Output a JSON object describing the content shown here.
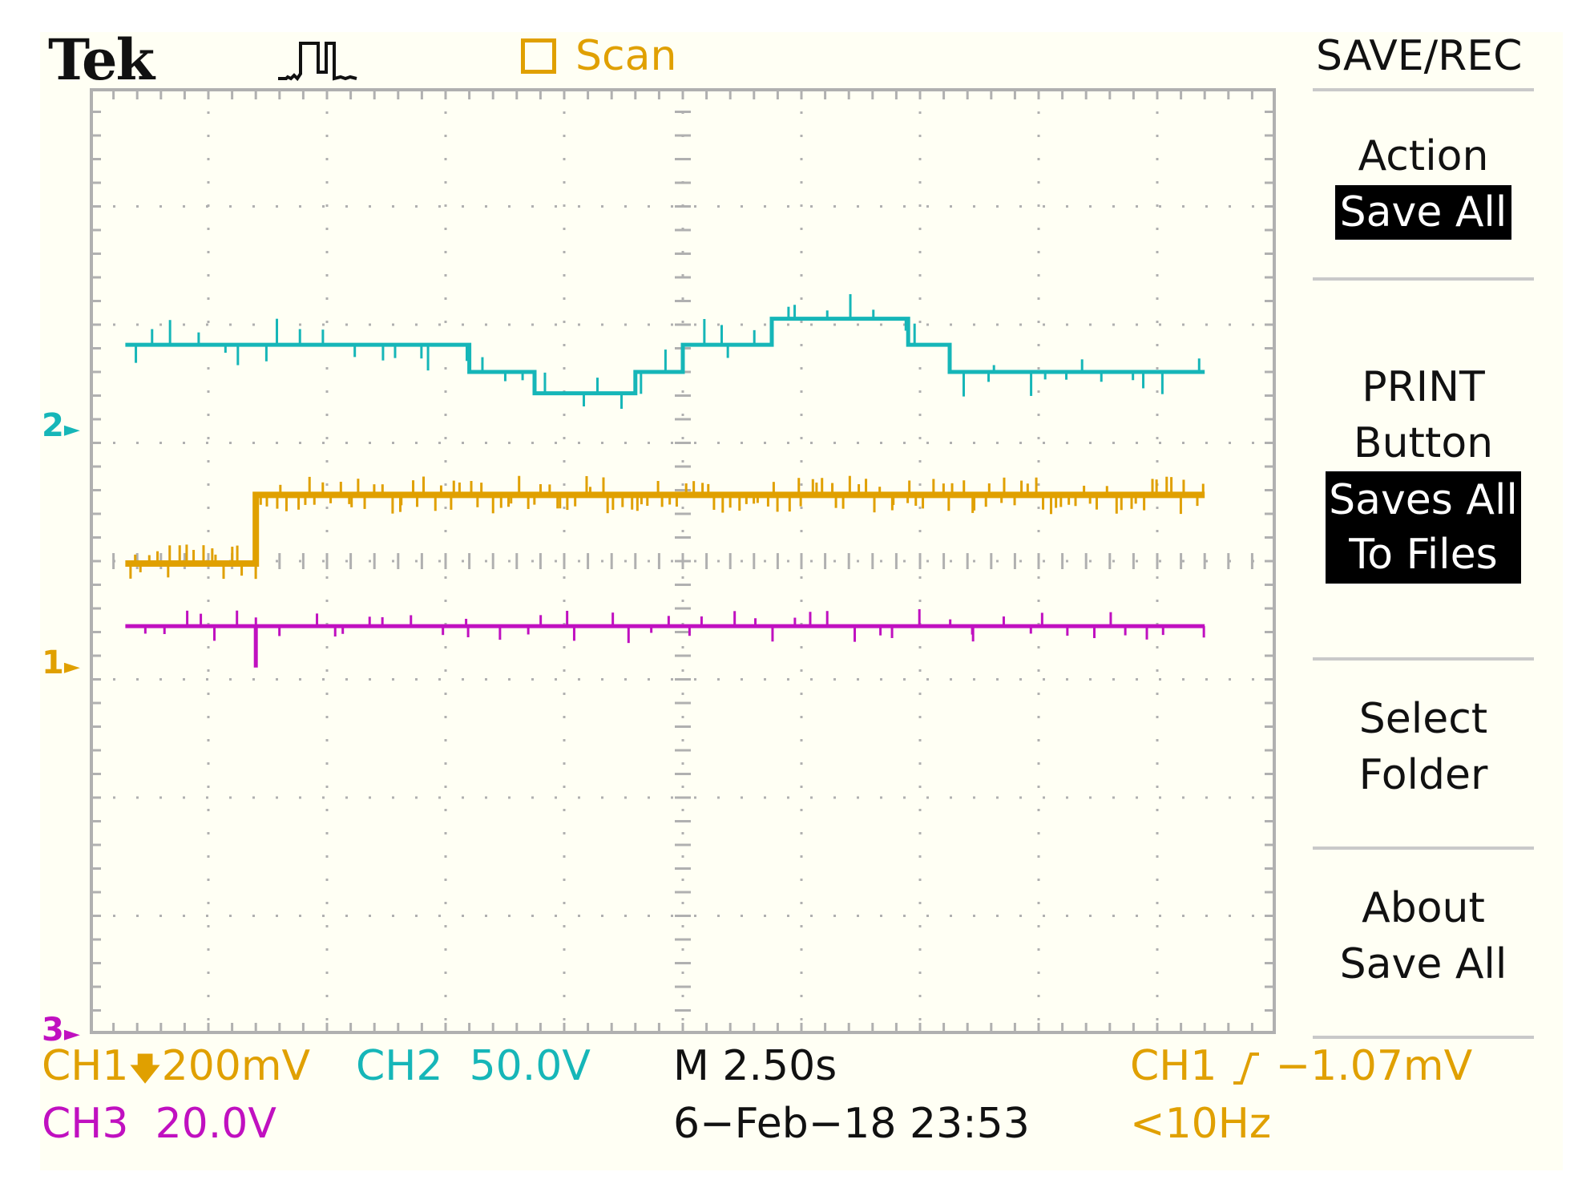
{
  "header": {
    "brand": "Tek",
    "trigger_icon": "trigger-waveform-icon",
    "acquire_mode": "Scan",
    "menu_title": "SAVE/REC"
  },
  "menu": {
    "action": {
      "label": "Action",
      "value": "Save All"
    },
    "print_button": {
      "label_line1": "PRINT",
      "label_line2": "Button",
      "value_line1": "Saves All",
      "value_line2": "To Files"
    },
    "select_folder": {
      "line1": "Select",
      "line2": "Folder"
    },
    "about": {
      "line1": "About",
      "line2": "Save All"
    }
  },
  "markers": {
    "ch2": "2",
    "ch1": "1",
    "ch3": "3"
  },
  "status": {
    "ch1_scale": "CH1➕200mV",
    "ch1_label": "CH1",
    "ch1_value": "200mV",
    "ch2_label": "CH2",
    "ch2_value": "50.0V",
    "ch3_label": "CH3",
    "ch3_value": "20.0V",
    "timebase": "M 2.50s",
    "datetime": "6−Feb−18 23:53",
    "trigger_source": "CH1",
    "trigger_level": "−1.07mV",
    "trigger_freq": "<10Hz"
  },
  "colors": {
    "ch1": "#e0a000",
    "ch2": "#16b6b8",
    "ch3": "#c010c0",
    "grid": "#b0b0b0"
  },
  "chart_data": {
    "type": "line",
    "x_divisions": 10,
    "y_divisions": 8,
    "x_unit_per_div": "2.50s",
    "series": [
      {
        "name": "CH2",
        "color": "#16b6b8",
        "x": [
          0.3,
          3.2,
          3.2,
          3.75,
          3.75,
          4.6,
          4.6,
          5.0,
          5.0,
          5.75,
          5.75,
          6.9,
          6.9,
          7.25,
          7.25,
          9.4
        ],
        "y": [
          1.83,
          1.83,
          1.6,
          1.6,
          1.42,
          1.42,
          1.6,
          1.6,
          1.83,
          1.83,
          2.05,
          2.05,
          1.83,
          1.83,
          1.6,
          1.6
        ]
      },
      {
        "name": "CH1",
        "color": "#e0a000",
        "x": [
          0.3,
          1.4,
          1.4,
          9.4
        ],
        "y": [
          -0.02,
          -0.02,
          0.56,
          0.56
        ]
      },
      {
        "name": "CH3",
        "color": "#c010c0",
        "x": [
          0.3,
          1.4,
          1.4,
          1.4,
          9.4
        ],
        "y": [
          -0.55,
          -0.55,
          -0.9,
          -0.55,
          -0.55
        ]
      }
    ]
  }
}
